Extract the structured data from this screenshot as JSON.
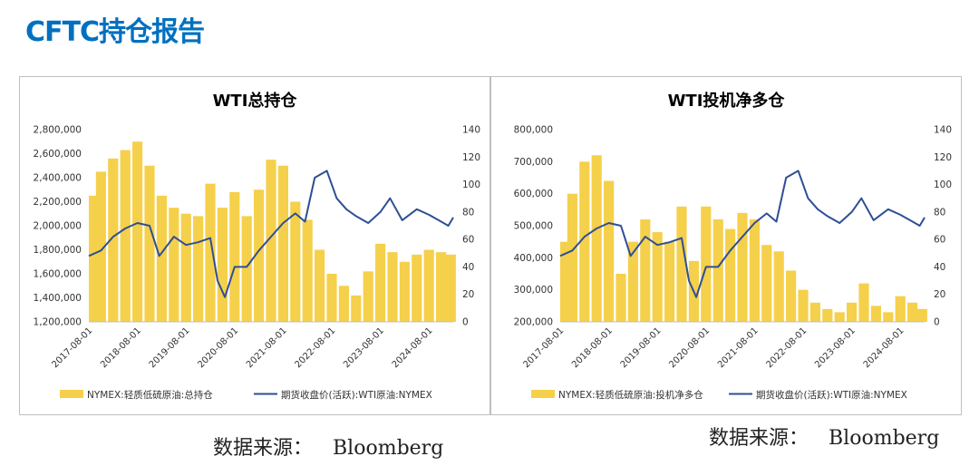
{
  "header": {
    "title": "CFTC持仓报告"
  },
  "colors": {
    "bar": "#f5d04a",
    "line": "#2e4f95",
    "title": "#0070c0"
  },
  "sources": [
    {
      "label": "数据来源：",
      "value": "Bloomberg"
    },
    {
      "label": "数据来源：",
      "value": "Bloomberg"
    }
  ],
  "chart_data": [
    {
      "type": "bar",
      "title": "WTI总持仓",
      "x_ticks": [
        "2017-08-01",
        "2018-08-01",
        "2019-08-01",
        "2020-08-01",
        "2021-08-01",
        "2022-08-01",
        "2023-08-01",
        "2024-08-01"
      ],
      "x_range": [
        2017.5,
        2025.0
      ],
      "y_left": {
        "min": 1200000,
        "max": 2800000,
        "ticks": [
          "1,200,000",
          "1,400,000",
          "1,600,000",
          "1,800,000",
          "2,000,000",
          "2,200,000",
          "2,400,000",
          "2,600,000",
          "2,800,000"
        ]
      },
      "y_right": {
        "min": 0,
        "max": 140,
        "ticks": [
          "0",
          "20",
          "40",
          "60",
          "80",
          "100",
          "120",
          "140"
        ]
      },
      "legend": [
        "NYMEX:轻质低硫原油:总持仓",
        "期货收盘价(活跃):WTI原油:NYMEX"
      ],
      "series": [
        {
          "name": "NYMEX:轻质低硫原油:总持仓",
          "type": "bar",
          "axis": "left",
          "x": [
            2017.5,
            2017.75,
            2018.0,
            2018.25,
            2018.5,
            2018.75,
            2019.0,
            2019.25,
            2019.5,
            2019.75,
            2020.0,
            2020.25,
            2020.5,
            2020.75,
            2021.0,
            2021.25,
            2021.5,
            2021.75,
            2022.0,
            2022.25,
            2022.5,
            2022.75,
            2023.0,
            2023.25,
            2023.5,
            2023.75,
            2024.0,
            2024.25,
            2024.5,
            2024.75,
            2024.95
          ],
          "values": [
            2250000,
            2450000,
            2560000,
            2630000,
            2700000,
            2500000,
            2250000,
            2150000,
            2100000,
            2080000,
            2350000,
            2150000,
            2280000,
            2080000,
            2300000,
            2550000,
            2500000,
            2200000,
            2050000,
            1800000,
            1600000,
            1500000,
            1420000,
            1620000,
            1850000,
            1780000,
            1700000,
            1760000,
            1800000,
            1780000,
            1760000
          ]
        },
        {
          "name": "期货收盘价(活跃):WTI原油:NYMEX",
          "type": "line",
          "axis": "right",
          "x": [
            2017.5,
            2017.75,
            2018.0,
            2018.25,
            2018.5,
            2018.75,
            2018.95,
            2019.25,
            2019.5,
            2019.75,
            2020.0,
            2020.15,
            2020.3,
            2020.5,
            2020.75,
            2021.0,
            2021.25,
            2021.5,
            2021.75,
            2021.95,
            2022.15,
            2022.4,
            2022.6,
            2022.8,
            2023.0,
            2023.25,
            2023.5,
            2023.7,
            2023.95,
            2024.25,
            2024.5,
            2024.7,
            2024.9,
            2025.0
          ],
          "values": [
            48,
            52,
            62,
            68,
            72,
            70,
            48,
            62,
            56,
            58,
            61,
            30,
            18,
            40,
            40,
            52,
            62,
            72,
            79,
            73,
            105,
            110,
            90,
            82,
            77,
            72,
            80,
            90,
            74,
            82,
            78,
            74,
            70,
            76
          ]
        }
      ]
    },
    {
      "type": "bar",
      "title": "WTI投机净多仓",
      "x_ticks": [
        "2017-08-01",
        "2018-08-01",
        "2019-08-01",
        "2020-08-01",
        "2021-08-01",
        "2022-08-01",
        "2023-08-01",
        "2024-08-01"
      ],
      "x_range": [
        2017.5,
        2025.0
      ],
      "y_left": {
        "min": 200000,
        "max": 800000,
        "ticks": [
          "200,000",
          "300,000",
          "400,000",
          "500,000",
          "600,000",
          "700,000",
          "800,000"
        ]
      },
      "y_right": {
        "min": 0,
        "max": 140,
        "ticks": [
          "0",
          "20",
          "40",
          "60",
          "80",
          "100",
          "120",
          "140"
        ]
      },
      "legend": [
        "NYMEX:轻质低硫原油:投机净多仓",
        "期货收盘价(活跃):WTI原油:NYMEX"
      ],
      "series": [
        {
          "name": "NYMEX:轻质低硫原油:投机净多仓",
          "type": "bar",
          "axis": "left",
          "x": [
            2017.5,
            2017.75,
            2018.0,
            2018.25,
            2018.5,
            2018.75,
            2019.0,
            2019.25,
            2019.5,
            2019.75,
            2020.0,
            2020.25,
            2020.5,
            2020.75,
            2021.0,
            2021.25,
            2021.5,
            2021.75,
            2022.0,
            2022.25,
            2022.5,
            2022.75,
            2023.0,
            2023.25,
            2023.5,
            2023.75,
            2024.0,
            2024.25,
            2024.5,
            2024.75,
            2024.95
          ],
          "values": [
            450000,
            600000,
            700000,
            720000,
            640000,
            350000,
            450000,
            520000,
            480000,
            450000,
            560000,
            390000,
            560000,
            520000,
            490000,
            540000,
            520000,
            440000,
            420000,
            360000,
            300000,
            260000,
            240000,
            230000,
            260000,
            320000,
            250000,
            230000,
            280000,
            260000,
            240000
          ]
        },
        {
          "name": "期货收盘价(活跃):WTI原油:NYMEX",
          "type": "line",
          "axis": "right",
          "x": [
            2017.5,
            2017.75,
            2018.0,
            2018.25,
            2018.5,
            2018.75,
            2018.95,
            2019.25,
            2019.5,
            2019.75,
            2020.0,
            2020.15,
            2020.3,
            2020.5,
            2020.75,
            2021.0,
            2021.25,
            2021.5,
            2021.75,
            2021.95,
            2022.15,
            2022.4,
            2022.6,
            2022.8,
            2023.0,
            2023.25,
            2023.5,
            2023.7,
            2023.95,
            2024.25,
            2024.5,
            2024.7,
            2024.9,
            2025.0
          ],
          "values": [
            48,
            52,
            62,
            68,
            72,
            70,
            48,
            62,
            56,
            58,
            61,
            30,
            18,
            40,
            40,
            52,
            62,
            72,
            79,
            73,
            105,
            110,
            90,
            82,
            77,
            72,
            80,
            90,
            74,
            82,
            78,
            74,
            70,
            76
          ]
        }
      ]
    }
  ]
}
